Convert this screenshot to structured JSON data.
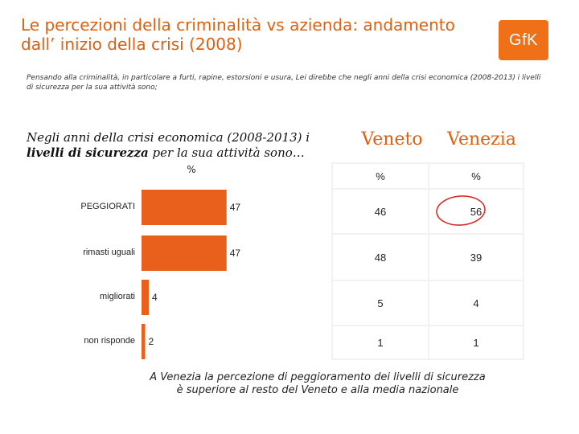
{
  "header": {
    "title": "Le percezioni della criminalità vs azienda: andamento dall’ inizio della crisi (2008)",
    "logo_text": "GfK"
  },
  "question": "Pensando alla criminalità, in particolare a furti, rapine, estorsioni e usura, Lei direbbe che negli anni della crisi economica (2008-2013) i livelli di sicurezza per la sua attività sono;",
  "chart_header": {
    "title_part1": "Negli anni della crisi economica (2008-2013) i",
    "title_bold": "livelli di sicurezza",
    "title_part2": "per la sua attività sono…",
    "unit": "%"
  },
  "regions": {
    "veneto": "Veneto",
    "venezia": "Venezia",
    "unit": "%"
  },
  "chart_data": {
    "type": "bar",
    "orientation": "horizontal",
    "categories": [
      "PEGGIORATI",
      "rimasti uguali",
      "migliorati",
      "non risponde"
    ],
    "values": [
      47,
      47,
      4,
      2
    ],
    "series_color": "#e8601c",
    "table": {
      "columns": [
        "Veneto",
        "Venezia"
      ],
      "rows": [
        {
          "category": "PEGGIORATI",
          "Veneto": 46,
          "Venezia": 56,
          "highlighted": "Venezia"
        },
        {
          "category": "rimasti uguali",
          "Veneto": 48,
          "Venezia": 39
        },
        {
          "category": "migliorati",
          "Veneto": 5,
          "Venezia": 4
        },
        {
          "category": "non risponde",
          "Veneto": 1,
          "Venezia": 1
        }
      ]
    }
  },
  "table_values": {
    "veneto": [
      "46",
      "48",
      "5",
      "1"
    ],
    "venezia": [
      "56",
      "39",
      "4",
      "1"
    ]
  },
  "conclusion": {
    "line1": "A Venezia la percezione di peggioramento dei livelli di sicurezza",
    "line2": "è superiore al resto del Veneto e alla media nazionale"
  }
}
